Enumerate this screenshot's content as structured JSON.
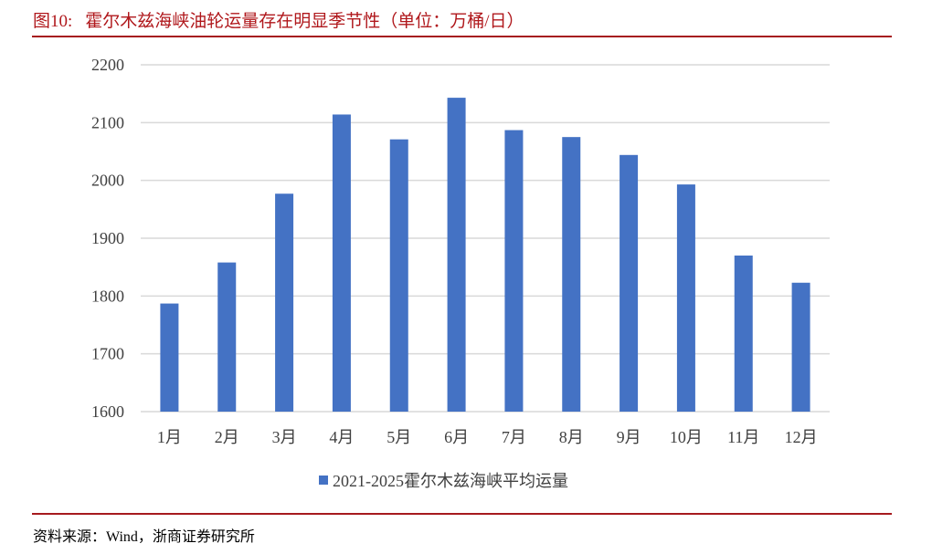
{
  "header": {
    "figure_no": "图10:",
    "title": "霍尔木兹海峡油轮运量存在明显季节性（单位：万桶/日）"
  },
  "footer": {
    "source": "资料来源：Wind，浙商证券研究所"
  },
  "colors": {
    "bar": "#4472c4",
    "accent": "#a6191e",
    "grid": "#d9d9d9"
  },
  "chart_data": {
    "type": "bar",
    "categories": [
      "1月",
      "2月",
      "3月",
      "4月",
      "5月",
      "6月",
      "7月",
      "8月",
      "9月",
      "10月",
      "11月",
      "12月"
    ],
    "series": [
      {
        "name": "2021-2025霍尔木兹海峡平均运量",
        "values": [
          1787,
          1858,
          1977,
          2114,
          2071,
          2143,
          2087,
          2075,
          2044,
          1993,
          1870,
          1823
        ]
      }
    ],
    "ylim": [
      1600,
      2200
    ],
    "yticks": [
      1600,
      1700,
      1800,
      1900,
      2000,
      2100,
      2200
    ],
    "grid": true,
    "legend": "bottom"
  }
}
